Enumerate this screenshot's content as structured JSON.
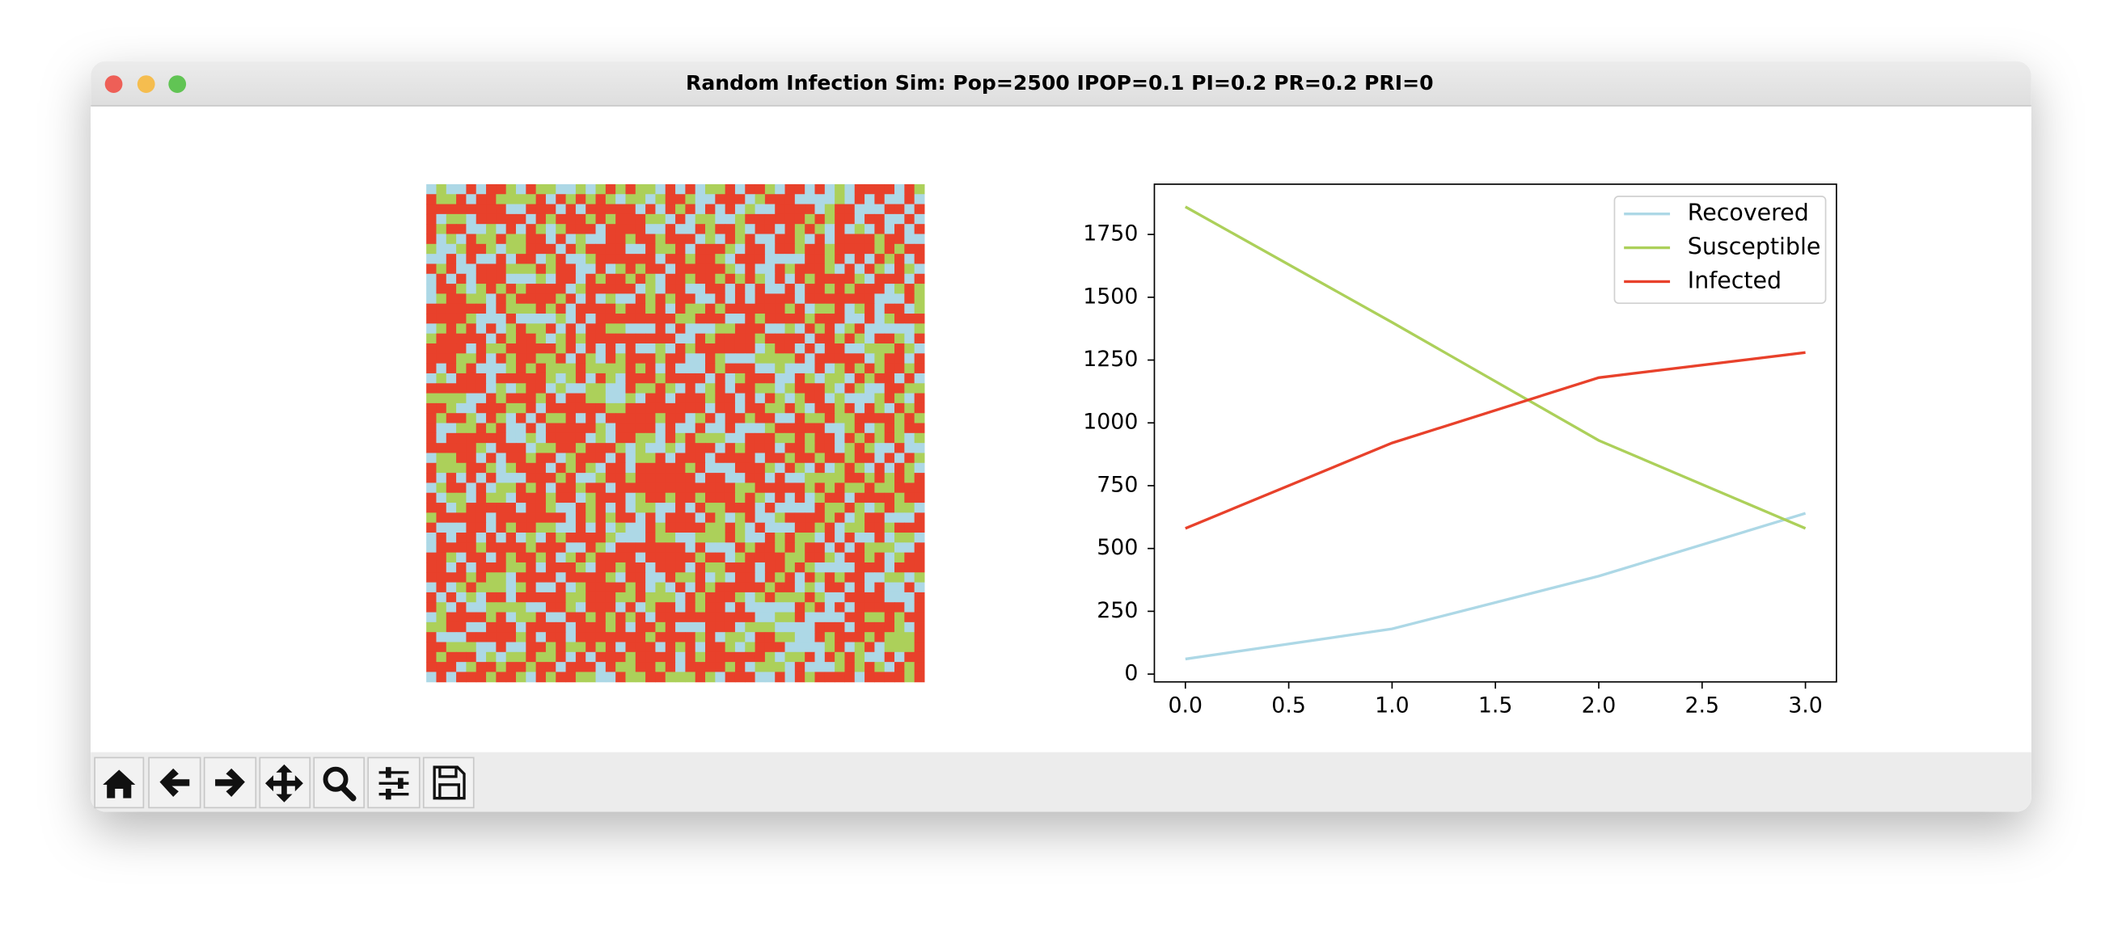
{
  "window": {
    "title": "Random Infection Sim: Pop=2500 IPOP=0.1 PI=0.2 PR=0.2 PRI=0"
  },
  "chart_data": {
    "type": "line",
    "x": [
      0,
      1,
      2,
      3
    ],
    "series": [
      {
        "name": "Recovered",
        "color": "#add8e6",
        "values": [
          60,
          180,
          390,
          640
        ]
      },
      {
        "name": "Susceptible",
        "color": "#acd05a",
        "values": [
          1860,
          1400,
          930,
          580
        ]
      },
      {
        "name": "Infected",
        "color": "#e8412b",
        "values": [
          580,
          920,
          1180,
          1280
        ]
      }
    ],
    "xlim": [
      -0.15,
      3.15
    ],
    "xticks": [
      {
        "value": 0,
        "label": "0.0"
      },
      0.5,
      {
        "value": 1,
        "label": "1.0"
      },
      1.5,
      {
        "value": 2,
        "label": "2.0"
      },
      2.5,
      {
        "value": 3,
        "label": "3.0"
      }
    ],
    "ylim": [
      -31,
      1950
    ],
    "yticks": [
      0,
      250,
      500,
      750,
      1000,
      1250,
      1500,
      1750
    ],
    "grid": false,
    "legend": "upper right"
  }
}
